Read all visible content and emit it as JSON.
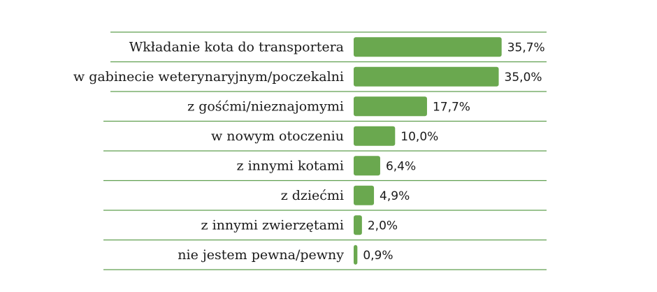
{
  "chart_data": {
    "type": "bar",
    "orientation": "horizontal",
    "categories": [
      "Wkładanie kota do transportera",
      "w gabinecie weterynaryjnym/poczekalni",
      "z gośćmi/nieznajomymi",
      "w nowym otoczeniu",
      "z innymi kotami",
      "z dziećmi",
      "z innymi zwierzętami",
      "nie jestem pewna/pewny"
    ],
    "values": [
      35.7,
      35.0,
      17.7,
      10.0,
      6.4,
      4.9,
      2.0,
      0.9
    ],
    "value_labels": [
      "35,7%",
      "35,0%",
      "17,7%",
      "10,0%",
      "6,4%",
      "4,9%",
      "2,0%",
      "0,9%"
    ],
    "title": "",
    "xlabel": "",
    "ylabel": "",
    "grid": false,
    "legend": "none",
    "bar_color": "#6aa84f",
    "rule_color": "#5f9f4f"
  }
}
